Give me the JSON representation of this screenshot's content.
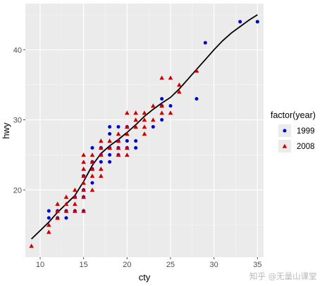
{
  "chart_data": {
    "type": "scatter",
    "xlabel": "cty",
    "ylabel": "hwy",
    "xlim": [
      8.3,
      35.7
    ],
    "ylim": [
      10.4,
      46.6
    ],
    "x_ticks": [
      10,
      15,
      20,
      25,
      30,
      35
    ],
    "y_ticks": [
      20,
      30,
      40
    ],
    "grid": true,
    "background": "#ebebeb",
    "legend": {
      "title": "factor(year)",
      "position": "right",
      "entries": [
        {
          "label": "1999",
          "shape": "circle",
          "color": "#0000cc"
        },
        {
          "label": "2008",
          "shape": "triangle",
          "color": "#cc0000"
        }
      ]
    },
    "series": [
      {
        "name": "1999",
        "shape": "circle",
        "color": "#0000cc",
        "points": [
          [
            11,
            17
          ],
          [
            11,
            16
          ],
          [
            12,
            17
          ],
          [
            12,
            16
          ],
          [
            13,
            17
          ],
          [
            13,
            16
          ],
          [
            14,
            19
          ],
          [
            14,
            17
          ],
          [
            15,
            22
          ],
          [
            15,
            20
          ],
          [
            15,
            19
          ],
          [
            15,
            17
          ],
          [
            16,
            24
          ],
          [
            16,
            26
          ],
          [
            16,
            23
          ],
          [
            16,
            21
          ],
          [
            17,
            25
          ],
          [
            17,
            26
          ],
          [
            17,
            24
          ],
          [
            18,
            29
          ],
          [
            18,
            28
          ],
          [
            18,
            26
          ],
          [
            18,
            25
          ],
          [
            18,
            24
          ],
          [
            19,
            29
          ],
          [
            19,
            27
          ],
          [
            19,
            26
          ],
          [
            19,
            25
          ],
          [
            20,
            29
          ],
          [
            20,
            27
          ],
          [
            20,
            26
          ],
          [
            21,
            27
          ],
          [
            21,
            26
          ],
          [
            23,
            29
          ],
          [
            24,
            33
          ],
          [
            24,
            32
          ],
          [
            24,
            30
          ],
          [
            25,
            32
          ],
          [
            28,
            33
          ],
          [
            29,
            41
          ],
          [
            33,
            44
          ],
          [
            35,
            44
          ]
        ]
      },
      {
        "name": "2008",
        "shape": "triangle",
        "color": "#cc0000",
        "points": [
          [
            9,
            12
          ],
          [
            11,
            14
          ],
          [
            11,
            15
          ],
          [
            12,
            16
          ],
          [
            12,
            17
          ],
          [
            12,
            18
          ],
          [
            13,
            17
          ],
          [
            13,
            18
          ],
          [
            13,
            19
          ],
          [
            14,
            17
          ],
          [
            14,
            18
          ],
          [
            14,
            19
          ],
          [
            14,
            20
          ],
          [
            15,
            17
          ],
          [
            15,
            19
          ],
          [
            15,
            20
          ],
          [
            15,
            21
          ],
          [
            15,
            22
          ],
          [
            15,
            23
          ],
          [
            15,
            24
          ],
          [
            15,
            25
          ],
          [
            16,
            20
          ],
          [
            16,
            22
          ],
          [
            16,
            23
          ],
          [
            16,
            24
          ],
          [
            16,
            25
          ],
          [
            17,
            22
          ],
          [
            17,
            23
          ],
          [
            17,
            25
          ],
          [
            17,
            26
          ],
          [
            17,
            27
          ],
          [
            18,
            26
          ],
          [
            18,
            27
          ],
          [
            19,
            25
          ],
          [
            19,
            26
          ],
          [
            19,
            27
          ],
          [
            19,
            28
          ],
          [
            20,
            25
          ],
          [
            20,
            26
          ],
          [
            20,
            28
          ],
          [
            20,
            29
          ],
          [
            20,
            31
          ],
          [
            21,
            29
          ],
          [
            21,
            30
          ],
          [
            21,
            31
          ],
          [
            22,
            28
          ],
          [
            22,
            29
          ],
          [
            22,
            30
          ],
          [
            22,
            31
          ],
          [
            23,
            30
          ],
          [
            23,
            32
          ],
          [
            24,
            31
          ],
          [
            24,
            32
          ],
          [
            24,
            36
          ],
          [
            25,
            31
          ],
          [
            25,
            36
          ],
          [
            26,
            34
          ],
          [
            26,
            35
          ],
          [
            28,
            37
          ]
        ]
      }
    ],
    "smooth_line": {
      "color": "#000000",
      "points": [
        [
          9,
          13
        ],
        [
          10,
          14.2
        ],
        [
          11,
          15.4
        ],
        [
          12,
          16.8
        ],
        [
          13,
          18
        ],
        [
          14,
          19.2
        ],
        [
          15,
          21.2
        ],
        [
          16,
          23.5
        ],
        [
          17,
          25.2
        ],
        [
          18,
          26.3
        ],
        [
          19,
          27.2
        ],
        [
          20,
          28.2
        ],
        [
          21,
          29.3
        ],
        [
          22,
          30.5
        ],
        [
          23,
          31.5
        ],
        [
          24,
          32.4
        ],
        [
          25,
          33.2
        ],
        [
          26,
          34.4
        ],
        [
          27,
          35.8
        ],
        [
          28,
          37.2
        ],
        [
          29,
          38.6
        ],
        [
          30,
          40
        ],
        [
          31,
          41.3
        ],
        [
          32,
          42.4
        ],
        [
          33,
          43.3
        ],
        [
          34,
          44.2
        ],
        [
          35,
          45
        ]
      ]
    }
  },
  "watermark": "知乎 @无量山课堂"
}
